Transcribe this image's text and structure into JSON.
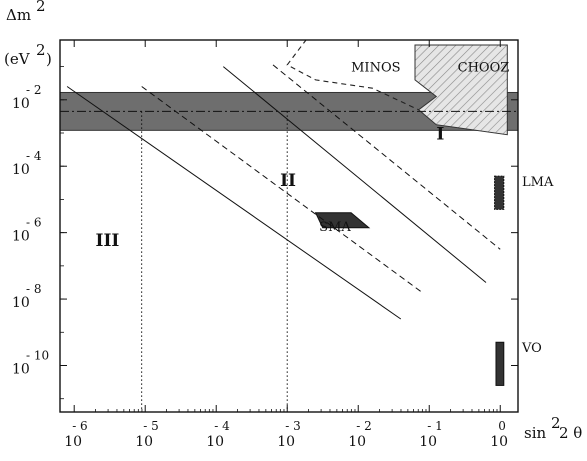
{
  "chart_data": {
    "type": "scatter",
    "title": "",
    "xlabel": "sin",
    "xlabel_sup": "2",
    "xlabel_rest": "2 θ",
    "ylabel_delta": "Δm",
    "ylabel_sup": "2",
    "ylabel_unit": "(eV",
    "ylabel_unit_sup": "2",
    "ylabel_unit_close": ")",
    "xlim": [
      -6.2,
      0.25
    ],
    "ylim": [
      -11.4,
      -0.2
    ],
    "x_scale": "log",
    "y_scale": "log",
    "x_ticks": [
      {
        "value": -6,
        "base": "10",
        "exp": "- 6"
      },
      {
        "value": -5,
        "base": "10",
        "exp": "- 5"
      },
      {
        "value": -4,
        "base": "10",
        "exp": "- 4"
      },
      {
        "value": -3,
        "base": "10",
        "exp": "- 3"
      },
      {
        "value": -2,
        "base": "10",
        "exp": "- 2"
      },
      {
        "value": -1,
        "base": "10",
        "exp": "- 1"
      },
      {
        "value": 0,
        "base": "10",
        "exp": "0"
      }
    ],
    "y_ticks": [
      {
        "value": -2,
        "base": "10",
        "exp": "- 2"
      },
      {
        "value": -4,
        "base": "10",
        "exp": "- 4"
      },
      {
        "value": -6,
        "base": "10",
        "exp": "- 6"
      },
      {
        "value": -8,
        "base": "10",
        "exp": "- 8"
      },
      {
        "value": -10,
        "base": "10",
        "exp": "- 10"
      }
    ],
    "regions": [
      {
        "label": "I",
        "x": -0.9,
        "y": -3.2
      },
      {
        "label": "II",
        "x": -3.1,
        "y": -4.6
      },
      {
        "label": "III",
        "x": -5.7,
        "y": -6.4
      }
    ],
    "annotations": [
      {
        "label": "MINOS",
        "x": -2.1,
        "y": -1.15
      },
      {
        "label": "CHOOZ",
        "x": -0.6,
        "y": -1.15
      },
      {
        "label": "SMA",
        "x": -2.55,
        "y": -5.95
      },
      {
        "label": "LMA",
        "x": 0.35,
        "y": -4.6
      },
      {
        "label": "VO",
        "x": 0.35,
        "y": -9.6
      }
    ],
    "band": {
      "y_min": -2.92,
      "y_max": -1.78
    },
    "dashdot_line_y": -2.35,
    "dotted_verticals": [
      {
        "x": -5.05,
        "y_top": -2.35
      },
      {
        "x": -3.0,
        "y_top": -2.35
      }
    ],
    "diagonal_lines": [
      {
        "style": "solid",
        "points": [
          [
            -6.1,
            -1.6
          ],
          [
            -1.4,
            -8.6
          ]
        ]
      },
      {
        "style": "dashed",
        "points": [
          [
            -5.05,
            -1.6
          ],
          [
            -1.1,
            -7.8
          ]
        ]
      },
      {
        "style": "solid",
        "points": [
          [
            -3.9,
            -1.0
          ],
          [
            -0.2,
            -7.5
          ]
        ]
      },
      {
        "style": "dashed",
        "points": [
          [
            -3.2,
            -0.95
          ],
          [
            0.0,
            -6.5
          ]
        ]
      }
    ],
    "minos_contour": [
      [
        -1.1,
        -0.05
      ],
      [
        -2.7,
        -0.1
      ],
      [
        -3.0,
        -0.95
      ],
      [
        -2.6,
        -1.4
      ],
      [
        -1.8,
        -1.65
      ],
      [
        -1.15,
        -2.3
      ]
    ],
    "chooz_region": [
      [
        -1.2,
        -0.35
      ],
      [
        0.1,
        -0.35
      ],
      [
        0.1,
        -3.05
      ],
      [
        -0.9,
        -2.75
      ],
      [
        -1.15,
        -2.3
      ],
      [
        -0.9,
        -1.9
      ],
      [
        -1.2,
        -1.4
      ]
    ],
    "sma_region": [
      [
        -2.6,
        -5.4
      ],
      [
        -2.1,
        -5.4
      ],
      [
        -1.85,
        -5.85
      ],
      [
        -2.5,
        -5.85
      ]
    ],
    "lma_region": {
      "x_min": -0.08,
      "x_max": 0.05,
      "y_min": -4.3,
      "y_max": -5.3
    },
    "vo_region": {
      "x_min": -0.06,
      "x_max": 0.05,
      "y_min": -9.3,
      "y_max": -10.6
    }
  }
}
